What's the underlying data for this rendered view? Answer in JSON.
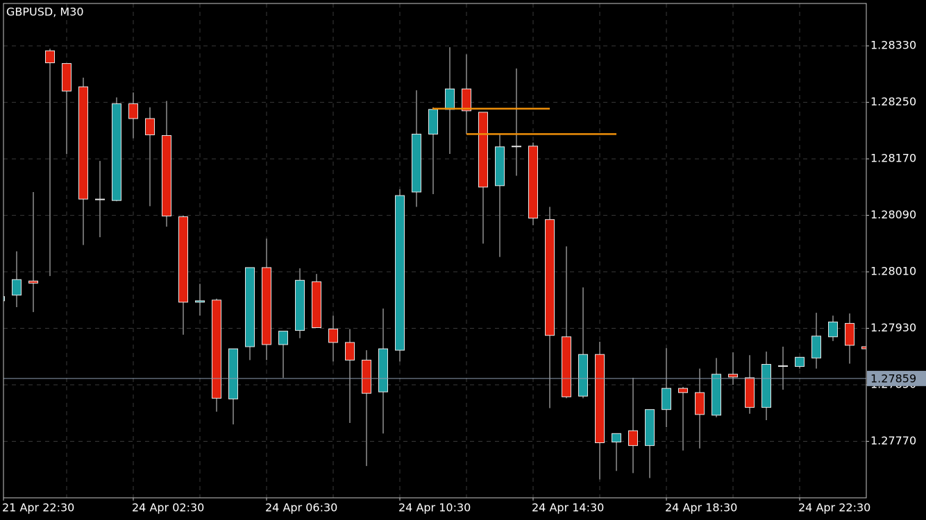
{
  "chart_data": {
    "type": "candlestick",
    "title": "GBPUSD, M30",
    "categories": [
      "21 Apr 22:30",
      null,
      null,
      null,
      null,
      null,
      null,
      null,
      "24 Apr 02:30",
      null,
      null,
      null,
      null,
      null,
      null,
      null,
      "24 Apr 06:30",
      null,
      null,
      null,
      null,
      null,
      null,
      null,
      "24 Apr 10:30",
      null,
      null,
      null,
      null,
      null,
      null,
      null,
      "24 Apr 14:30",
      null,
      null,
      null,
      null,
      null,
      null,
      null,
      "24 Apr 18:30",
      null,
      null,
      null,
      null,
      null,
      null,
      null,
      "24 Apr 22:30",
      null,
      null,
      null,
      null
    ],
    "open": [
      1.27969,
      1.27977,
      1.27997,
      1.28323,
      1.28305,
      1.28272,
      1.28113,
      1.28111,
      1.28248,
      1.28227,
      1.28203,
      1.28088,
      1.27967,
      1.2797,
      1.2783,
      1.27904,
      1.28016,
      1.27907,
      1.27927,
      1.27996,
      1.27929,
      1.2791,
      1.27885,
      1.2784,
      1.27899,
      1.28123,
      1.28205,
      1.2824,
      1.28269,
      1.28236,
      1.28132,
      1.28188,
      1.28188,
      1.28084,
      1.27918,
      1.27834,
      1.27893,
      1.27769,
      1.27785,
      1.27764,
      1.27815,
      1.27845,
      1.27839,
      1.27807,
      1.27865,
      1.2786,
      1.27818,
      1.27877,
      1.27876,
      1.27888,
      1.27918,
      1.27937,
      1.27904
    ],
    "high": [
      1.27975,
      1.28039,
      1.28123,
      1.28326,
      1.28305,
      1.28285,
      1.28167,
      1.28257,
      1.28264,
      1.28243,
      1.28252,
      1.2809,
      1.27993,
      1.27972,
      1.27901,
      1.28016,
      1.28057,
      1.27926,
      1.28015,
      1.28007,
      1.27948,
      1.27929,
      1.27899,
      1.27958,
      1.28127,
      1.28267,
      1.28243,
      1.28328,
      1.28318,
      1.28236,
      1.28205,
      1.28298,
      1.28193,
      1.28102,
      1.28046,
      1.27988,
      1.27911,
      1.27781,
      1.2786,
      1.27815,
      1.27902,
      1.27847,
      1.27873,
      1.27888,
      1.27896,
      1.27892,
      1.27897,
      1.27904,
      1.27889,
      1.27952,
      1.27948,
      1.27951,
      1.27904
    ],
    "low": [
      1.27965,
      1.2796,
      1.27953,
      1.28004,
      1.28177,
      1.28048,
      1.28059,
      1.2811,
      1.28199,
      1.28103,
      1.28074,
      1.27921,
      1.27948,
      1.27812,
      1.27794,
      1.27885,
      1.27885,
      1.2786,
      1.27916,
      1.27931,
      1.27883,
      1.27796,
      1.27735,
      1.27781,
      1.27883,
      1.28102,
      1.2812,
      1.28177,
      1.28205,
      1.2805,
      1.28031,
      1.28146,
      1.28076,
      1.27817,
      1.27831,
      1.27831,
      1.27716,
      1.27728,
      1.27725,
      1.27718,
      1.2779,
      1.27757,
      1.2776,
      1.27804,
      1.2785,
      1.27809,
      1.278,
      1.27843,
      1.27873,
      1.27873,
      1.27912,
      1.2788,
      1.27901
    ],
    "close": [
      1.27975,
      1.27999,
      1.27994,
      1.28306,
      1.28266,
      1.28113,
      1.28113,
      1.28248,
      1.28227,
      1.28204,
      1.28089,
      1.27967,
      1.27969,
      1.27831,
      1.27901,
      1.28016,
      1.27907,
      1.27926,
      1.27998,
      1.27931,
      1.2791,
      1.27885,
      1.27838,
      1.27901,
      1.28118,
      1.28205,
      1.2824,
      1.28269,
      1.28238,
      1.2813,
      1.28187,
      1.28188,
      1.28086,
      1.2792,
      1.27833,
      1.27893,
      1.27768,
      1.27781,
      1.27764,
      1.27815,
      1.27845,
      1.27839,
      1.27808,
      1.27865,
      1.27861,
      1.27818,
      1.27879,
      1.27877,
      1.27889,
      1.27919,
      1.27939,
      1.27906,
      1.27901
    ],
    "up_color": "#1a9ea2",
    "down_color": "#e2220f",
    "ylim": [
      1.2769,
      1.2839
    ],
    "yticks": [
      {
        "value": 1.2833,
        "label": "1.28330"
      },
      {
        "value": 1.2825,
        "label": "1.28250"
      },
      {
        "value": 1.2817,
        "label": "1.28170"
      },
      {
        "value": 1.2809,
        "label": "1.28090"
      },
      {
        "value": 1.2801,
        "label": "1.28010"
      },
      {
        "value": 1.2793,
        "label": "1.27930"
      },
      {
        "value": 1.2785,
        "label": "1.27850"
      },
      {
        "value": 1.2777,
        "label": "1.27770"
      }
    ],
    "grid": true,
    "current_price": 1.27859,
    "levels": [
      {
        "value": 1.28241,
        "color": "#f0900a"
      },
      {
        "value": 1.28205,
        "color": "#f0900a"
      }
    ]
  }
}
